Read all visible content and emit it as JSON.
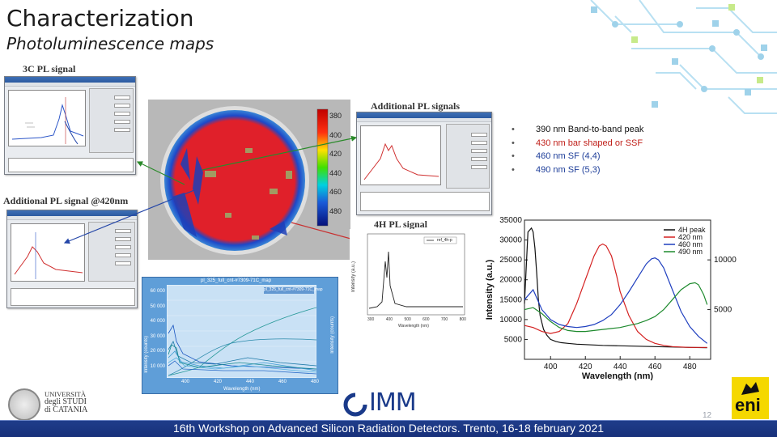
{
  "slide": {
    "title": "Characterization",
    "subtitle": "Photoluminescence maps",
    "labels": {
      "pl3c": "3C PL signal",
      "additional_pl": "Additional PL signals",
      "additional_420": "Additional PL signal @420nm",
      "pl4h": "4H PL signal"
    },
    "bullets": [
      {
        "text": "390 nm Band-to-band peak",
        "color": "#222222"
      },
      {
        "text": "430 nm bar shaped or SSF",
        "color": "#c0201a"
      },
      {
        "text": "460 nm SF (4,4)",
        "color": "#1f3f9a"
      },
      {
        "text": "490 nm SF (5,3)",
        "color": "#1f3f9a"
      }
    ],
    "footer": "16th Workshop on Advanced Silicon Radiation Detectors. Trento, 16-18 february 2021",
    "page_number": "12",
    "logos": {
      "university_lines": [
        "UNIVERSITÀ",
        "degli STUDI",
        "di CATANIA"
      ],
      "imm": "IMM",
      "eni": "eni"
    }
  },
  "colorbar": {
    "ticks": [
      "380",
      "400",
      "420",
      "440",
      "460",
      "480"
    ]
  },
  "spectra_chart": {
    "title": "pl_325_full_cnt-#7309-71C_map",
    "legend": "pl_325_full_cnt-#7309-71C_map",
    "xlabel": "Wavelength (nm)",
    "ylabel_left": "Intensity (counts)",
    "ylabel_right": "Intensity (counts)",
    "x_ticks": [
      "400",
      "420",
      "440",
      "460",
      "480"
    ],
    "y_ticks": [
      "60 000",
      "50 000",
      "40 000",
      "30 000",
      "20 000",
      "10 000",
      "0"
    ]
  },
  "small4h": {
    "xlabel": "Wavelength (nm)",
    "ylabel": "Intensity (a.u.)",
    "legend": "ref_4h-p",
    "x_ticks": [
      "300",
      "400",
      "500",
      "600",
      "700",
      "800"
    ]
  },
  "chart_data": {
    "type": "line",
    "xlabel": "Wavelength (nm)",
    "ylabel": "Intensity (a.u.)",
    "xlim": [
      385,
      492
    ],
    "ylim": [
      0,
      35000
    ],
    "y2lim": [
      0,
      14000
    ],
    "x_ticks": [
      400,
      420,
      440,
      460,
      480
    ],
    "y_ticks": [
      5000,
      10000,
      15000,
      20000,
      25000,
      30000,
      35000
    ],
    "y2_ticks": [
      5000,
      10000
    ],
    "legend_position": "top-right",
    "series": [
      {
        "name": "4H peak",
        "color": "#111111",
        "axis": "left",
        "x": [
          385,
          387,
          389,
          390,
          391,
          392,
          393,
          394,
          396,
          398,
          400,
          403,
          406,
          410,
          415,
          420,
          425,
          430,
          440,
          450,
          460,
          470,
          480,
          490
        ],
        "y": [
          14000,
          32000,
          33000,
          32000,
          28000,
          22000,
          15000,
          11000,
          7500,
          6000,
          5000,
          4500,
          4200,
          4000,
          3800,
          3700,
          3600,
          3500,
          3400,
          3300,
          3200,
          3100,
          3000,
          2900
        ]
      },
      {
        "name": "420 nm",
        "color": "#d42020",
        "axis": "left",
        "x": [
          385,
          390,
          395,
          400,
          405,
          410,
          415,
          420,
          425,
          428,
          430,
          432,
          435,
          438,
          440,
          445,
          450,
          455,
          460,
          465,
          470,
          480,
          490
        ],
        "y": [
          8500,
          8000,
          7000,
          6500,
          7000,
          9000,
          14000,
          20000,
          26000,
          28500,
          29000,
          28500,
          26000,
          21000,
          17000,
          11000,
          7000,
          5000,
          4000,
          3500,
          3200,
          3000,
          3000
        ]
      },
      {
        "name": "460 nm",
        "color": "#1f3fbf",
        "axis": "right",
        "x": [
          385,
          390,
          395,
          400,
          405,
          410,
          415,
          420,
          425,
          430,
          435,
          440,
          445,
          450,
          455,
          458,
          460,
          462,
          465,
          470,
          475,
          480,
          485,
          490
        ],
        "y": [
          6000,
          7000,
          5000,
          4000,
          3500,
          3300,
          3200,
          3300,
          3500,
          3900,
          4500,
          5500,
          6800,
          8200,
          9600,
          10100,
          10200,
          10000,
          9200,
          7000,
          4800,
          3300,
          2300,
          1600
        ]
      },
      {
        "name": "490 nm",
        "color": "#1e8a2e",
        "axis": "right",
        "x": [
          385,
          390,
          395,
          400,
          405,
          410,
          415,
          420,
          425,
          430,
          435,
          440,
          445,
          450,
          455,
          460,
          465,
          470,
          475,
          480,
          483,
          485,
          488,
          490
        ],
        "y": [
          5000,
          5200,
          4600,
          3800,
          3200,
          2900,
          2800,
          2800,
          2900,
          3000,
          3100,
          3200,
          3400,
          3600,
          3900,
          4300,
          5000,
          6000,
          7000,
          7600,
          7700,
          7500,
          6500,
          5500
        ]
      }
    ]
  }
}
